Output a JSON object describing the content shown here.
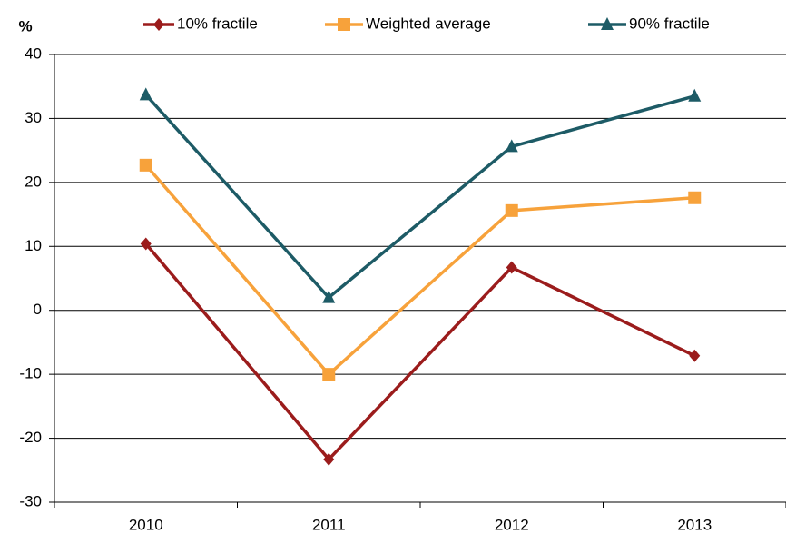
{
  "chart_data": {
    "type": "line",
    "y_label": "%",
    "categories": [
      "2010",
      "2011",
      "2012",
      "2013"
    ],
    "series": [
      {
        "name": "10% fractile",
        "color": "#9b1c1c",
        "marker": "diamond",
        "values": [
          10.4,
          -23.3,
          6.7,
          -7.1
        ]
      },
      {
        "name": "Weighted average",
        "color": "#f7a23b",
        "marker": "square",
        "values": [
          22.7,
          -10.0,
          15.6,
          17.6
        ]
      },
      {
        "name": "90% fractile",
        "color": "#1d5b66",
        "marker": "triangle",
        "values": [
          33.7,
          2.0,
          25.6,
          33.5
        ]
      }
    ],
    "ylim": [
      -30,
      40
    ],
    "yticks": [
      -30,
      -20,
      -10,
      0,
      10,
      20,
      30,
      40
    ],
    "grid": true,
    "legend": "top"
  }
}
